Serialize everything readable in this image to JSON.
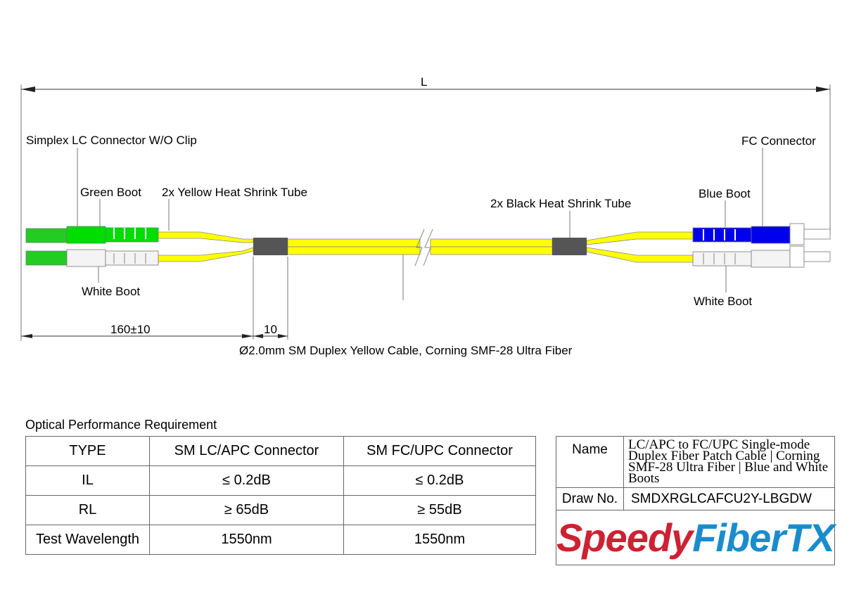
{
  "drawing": {
    "length_label": "L",
    "labels": {
      "lc_connector": "Simplex LC Connector W/O Clip",
      "green_boot": "Green Boot",
      "yellow_tube": "2x Yellow Heat Shrink Tube",
      "white_boot_left": "White Boot",
      "black_tube": "2x Black Heat Shrink Tube",
      "blue_boot": "Blue Boot",
      "fc_connector": "FC Connector",
      "white_boot_right": "White Boot"
    },
    "dim_breakout": "160±10",
    "dim_tube": "10",
    "cable_caption": "Ø2.0mm SM Duplex Yellow Cable, Corning SMF-28 Ultra Fiber",
    "colors": {
      "cable": "#ffff00",
      "green": "#00dd00",
      "blue": "#0000ee",
      "white": "#f4f4f4",
      "shrink": "#555555"
    }
  },
  "performance": {
    "title": "Optical Performance Requirement",
    "headers": [
      "TYPE",
      "SM LC/APC Connector",
      "SM FC/UPC Connector"
    ],
    "rows": [
      [
        "IL",
        "≤ 0.2dB",
        "≤ 0.2dB"
      ],
      [
        "RL",
        "≥ 65dB",
        "≥ 55dB"
      ],
      [
        "Test Wavelength",
        "1550nm",
        "1550nm"
      ]
    ]
  },
  "info": {
    "name_label": "Name",
    "name_value": "LC/APC to FC/UPC Single-mode Duplex Fiber Patch Cable | Corning SMF-28 Ultra Fiber | Blue and White Boots",
    "draw_label": "Draw No.",
    "draw_value": "SMDXRGLCAFCU2Y-LBGDW",
    "logo_part1": "Speedy",
    "logo_part2": "FiberTX",
    "logo_colors": [
      "#cc2233",
      "#1a8ccc"
    ]
  }
}
